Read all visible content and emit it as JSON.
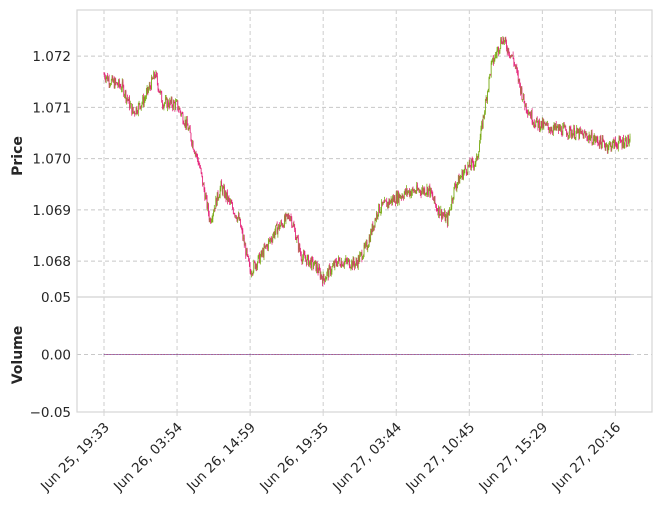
{
  "chart_data": {
    "type": "candlestick",
    "title": "",
    "up_color": "#7bab19",
    "down_color": "#e5267b",
    "volume_colors": [
      "#8d8fd6",
      "#b5436a"
    ],
    "grid": true,
    "panels": {
      "price": {
        "ylabel": "Price",
        "ylim": [
          1.0673,
          1.0729
        ],
        "yticks": [
          1.068,
          1.069,
          1.07,
          1.071,
          1.072
        ],
        "ytick_labels": [
          "1.068",
          "1.069",
          "1.070",
          "1.071",
          "1.072"
        ]
      },
      "volume": {
        "ylabel": "Volume",
        "ylim": [
          -0.05,
          0.05
        ],
        "yticks": [
          -0.05,
          0.0,
          0.05
        ],
        "ytick_labels": [
          "−0.05",
          "0.00",
          "0.05"
        ],
        "values_constant": 0
      }
    },
    "x_index_range": [
      0,
      720
    ],
    "xticks": [
      {
        "index": 0,
        "label": "Jun 25, 19:33"
      },
      {
        "index": 100,
        "label": "Jun 26, 03:54"
      },
      {
        "index": 200,
        "label": "Jun 26, 14:59"
      },
      {
        "index": 300,
        "label": "Jun 26, 19:35"
      },
      {
        "index": 400,
        "label": "Jun 27, 03:44"
      },
      {
        "index": 500,
        "label": "Jun 27, 10:45"
      },
      {
        "index": 600,
        "label": "Jun 27, 15:29"
      },
      {
        "index": 700,
        "label": "Jun 27, 20:16"
      }
    ],
    "price_path": [
      [
        0,
        1.07165
      ],
      [
        10,
        1.0715
      ],
      [
        25,
        1.0714
      ],
      [
        40,
        1.0709
      ],
      [
        55,
        1.07115
      ],
      [
        70,
        1.07165
      ],
      [
        80,
        1.0711
      ],
      [
        100,
        1.07105
      ],
      [
        115,
        1.0706
      ],
      [
        130,
        1.0699
      ],
      [
        145,
        1.0688
      ],
      [
        160,
        1.06945
      ],
      [
        185,
        1.0688
      ],
      [
        200,
        1.0678
      ],
      [
        215,
        1.0681
      ],
      [
        235,
        1.0686
      ],
      [
        255,
        1.0689
      ],
      [
        270,
        1.0681
      ],
      [
        290,
        1.0679
      ],
      [
        300,
        1.06765
      ],
      [
        320,
        1.068
      ],
      [
        345,
        1.06795
      ],
      [
        360,
        1.0683
      ],
      [
        375,
        1.069
      ],
      [
        395,
        1.0692
      ],
      [
        415,
        1.06935
      ],
      [
        445,
        1.0694
      ],
      [
        455,
        1.06905
      ],
      [
        470,
        1.0688
      ],
      [
        480,
        1.06945
      ],
      [
        495,
        1.0698
      ],
      [
        510,
        1.06995
      ],
      [
        530,
        1.0718
      ],
      [
        545,
        1.07235
      ],
      [
        560,
        1.07195
      ],
      [
        575,
        1.0711
      ],
      [
        590,
        1.0707
      ],
      [
        610,
        1.0706
      ],
      [
        630,
        1.07055
      ],
      [
        660,
        1.07045
      ],
      [
        690,
        1.07025
      ],
      [
        715,
        1.07035
      ]
    ]
  }
}
